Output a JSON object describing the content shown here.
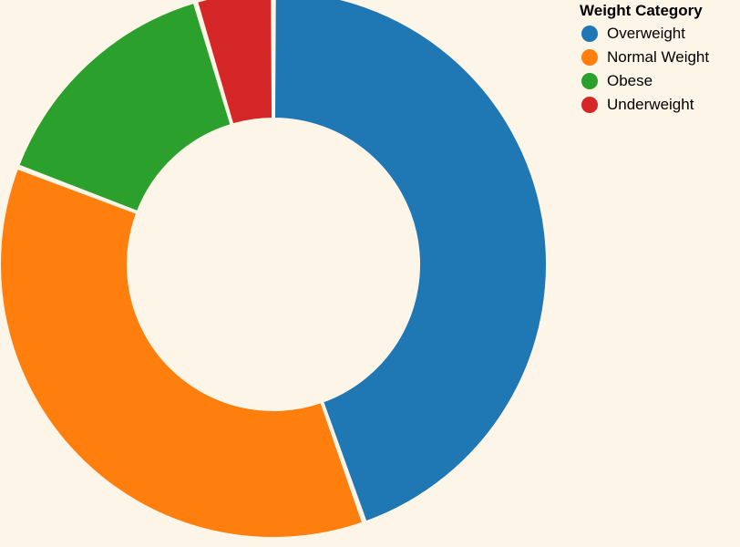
{
  "chart_data": {
    "type": "pie",
    "variant": "donut",
    "legend_title": "Weight Category",
    "legend_position": "top-right",
    "categories": [
      "Overweight",
      "Normal Weight",
      "Obese",
      "Underweight"
    ],
    "values": [
      44.6,
      36.2,
      14.6,
      4.6
    ],
    "colors": [
      "#1f77b4",
      "#ff7f0e",
      "#2ca02c",
      "#d62728"
    ]
  },
  "background_color": "#fdf5e8"
}
